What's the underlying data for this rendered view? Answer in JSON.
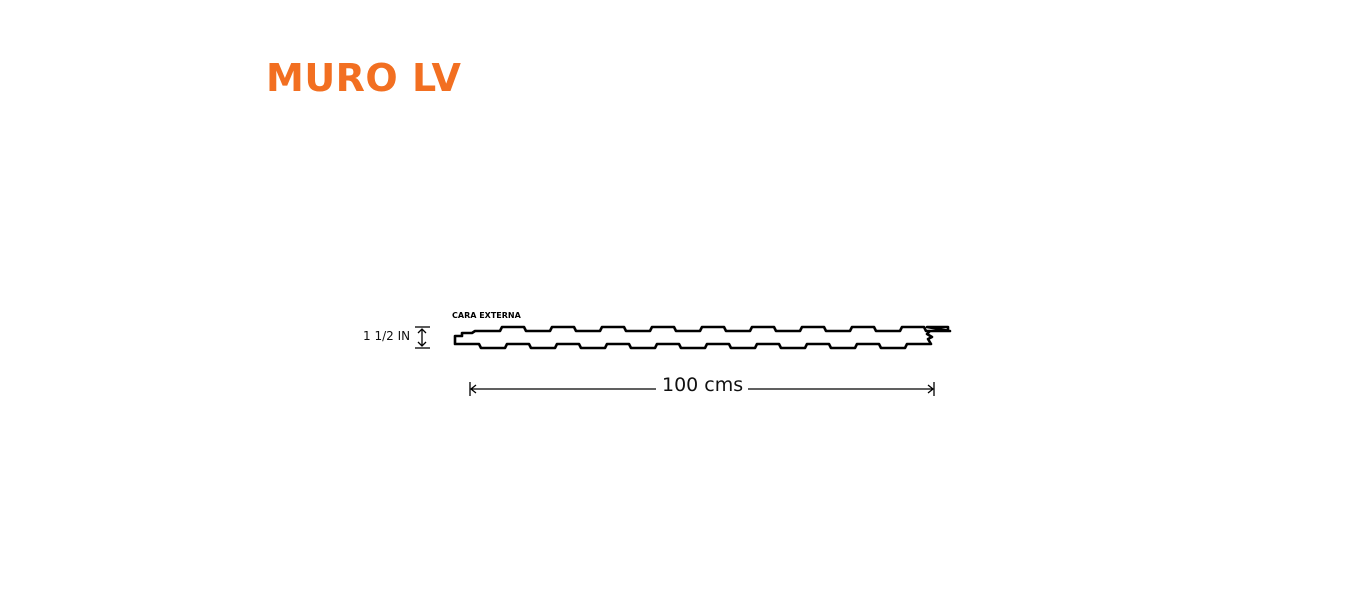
{
  "title": "MURO LV",
  "thickness_label": "1 1/2 IN",
  "face_label": "CARA EXTERNA",
  "width_label": "100 cms",
  "colors": {
    "title": "#f26f21",
    "drawing": "#000000"
  }
}
